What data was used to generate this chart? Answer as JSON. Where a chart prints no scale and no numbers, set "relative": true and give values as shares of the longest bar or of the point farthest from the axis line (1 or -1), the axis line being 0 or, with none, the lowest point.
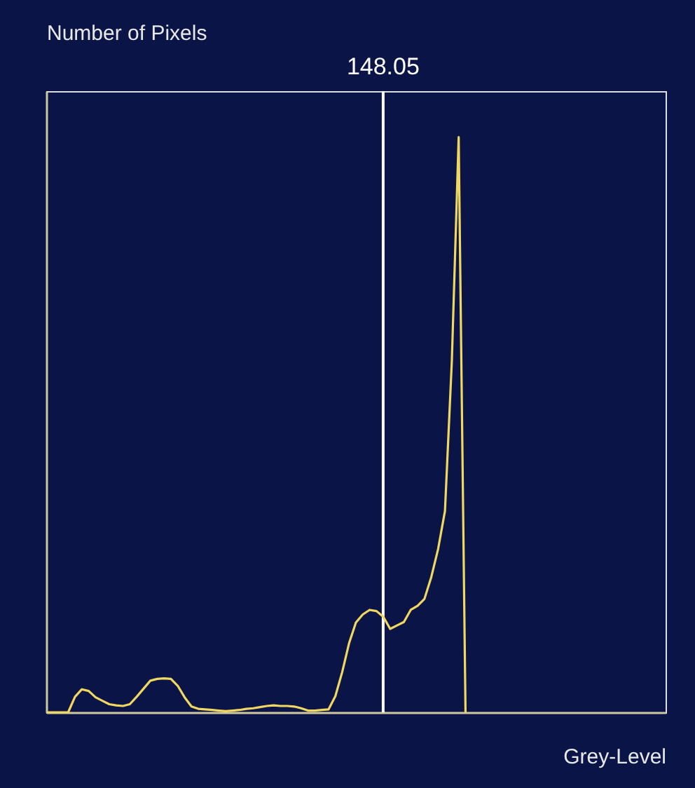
{
  "chart_data": {
    "type": "line",
    "relative": true,
    "xlabel": "Grey-Level",
    "ylabel": "Number of Pixels",
    "categories": [
      null,
      null,
      null,
      null,
      null,
      null,
      null,
      null,
      null,
      null,
      null,
      null,
      null,
      null,
      null,
      null,
      null,
      null,
      null,
      null,
      null,
      null,
      null,
      null,
      null,
      null,
      null,
      null,
      null,
      null,
      null,
      null,
      null,
      null,
      null,
      null,
      null,
      null,
      null,
      null,
      null,
      null,
      null,
      null,
      null,
      null,
      null,
      null,
      null,
      null,
      null,
      null,
      null,
      null,
      null,
      null,
      null,
      null,
      null,
      null,
      null,
      null,
      null,
      null,
      null,
      null,
      null,
      null,
      null,
      null,
      null,
      null,
      null,
      null,
      null,
      null,
      null,
      null,
      null,
      null,
      null,
      null,
      null,
      null,
      null,
      null,
      null,
      null,
      null,
      null,
      null
    ],
    "series": [
      {
        "color": "#f0d860",
        "values": [
          0,
          0,
          0,
          0,
          0.027,
          0.04,
          0.037,
          0.026,
          0.02,
          0.014,
          0.012,
          0.011,
          0.014,
          0.027,
          0.041,
          0.055,
          0.058,
          0.059,
          0.058,
          0.046,
          0.026,
          0.01,
          0.006,
          0.005,
          0.004,
          0.003,
          0.002,
          0.003,
          0.004,
          0.006,
          0.007,
          0.009,
          0.011,
          0.012,
          0.011,
          0.011,
          0.01,
          0.007,
          0.003,
          0.003,
          0.004,
          0.005,
          0.028,
          0.07,
          0.12,
          0.156,
          0.17,
          0.178,
          0.176,
          0.166,
          0.145,
          0.151,
          0.157,
          0.178,
          0.185,
          0.197,
          0.235,
          0.284,
          0.35,
          0.61,
          1.0,
          0,
          null,
          null,
          null,
          null,
          null,
          null,
          null,
          null,
          null,
          null,
          null,
          null,
          null,
          null,
          null,
          null,
          null,
          null,
          null,
          null,
          null,
          null,
          null,
          null,
          null,
          null,
          null,
          null,
          null
        ]
      }
    ],
    "annotations": [
      "148.05"
    ],
    "marker": "none",
    "line_style": "solid"
  }
}
